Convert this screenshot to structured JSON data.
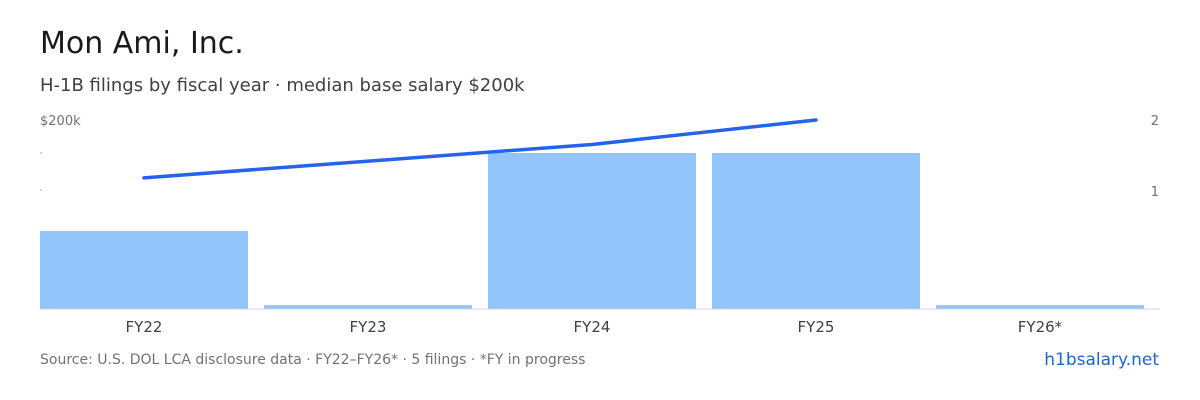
{
  "header": {
    "title": "Mon Ami, Inc.",
    "subtitle": "H-1B filings by fiscal year · median base salary $200k"
  },
  "chart_data": {
    "type": "bar",
    "categories": [
      "FY22",
      "FY23",
      "FY24",
      "FY25",
      "FY26*"
    ],
    "bar_series": {
      "values": [
        1.0,
        0.05,
        2.0,
        2.0,
        0.05
      ],
      "color": "#93c5fd"
    },
    "line_series": {
      "x": [
        "FY22",
        "FY24",
        "FY25"
      ],
      "values": [
        141,
        175,
        200
      ],
      "color": "#2563eb"
    },
    "left_axis": {
      "label": "$200k",
      "min": 100,
      "max": 200,
      "unit": "$k"
    },
    "right_axis": {
      "ticks": [
        "1",
        "2"
      ],
      "min": 0,
      "max": 2.4
    },
    "grid": false,
    "legend": "none"
  },
  "footer": {
    "source": "Source: U.S. DOL LCA disclosure data · FY22–FY26* · 5 filings · *FY in progress",
    "brand": "h1bsalary.net"
  },
  "colors": {
    "bar": "#93c5fd",
    "line": "#2563eb",
    "baseline": "#d4d4d8",
    "brand": "#1d64d8"
  }
}
